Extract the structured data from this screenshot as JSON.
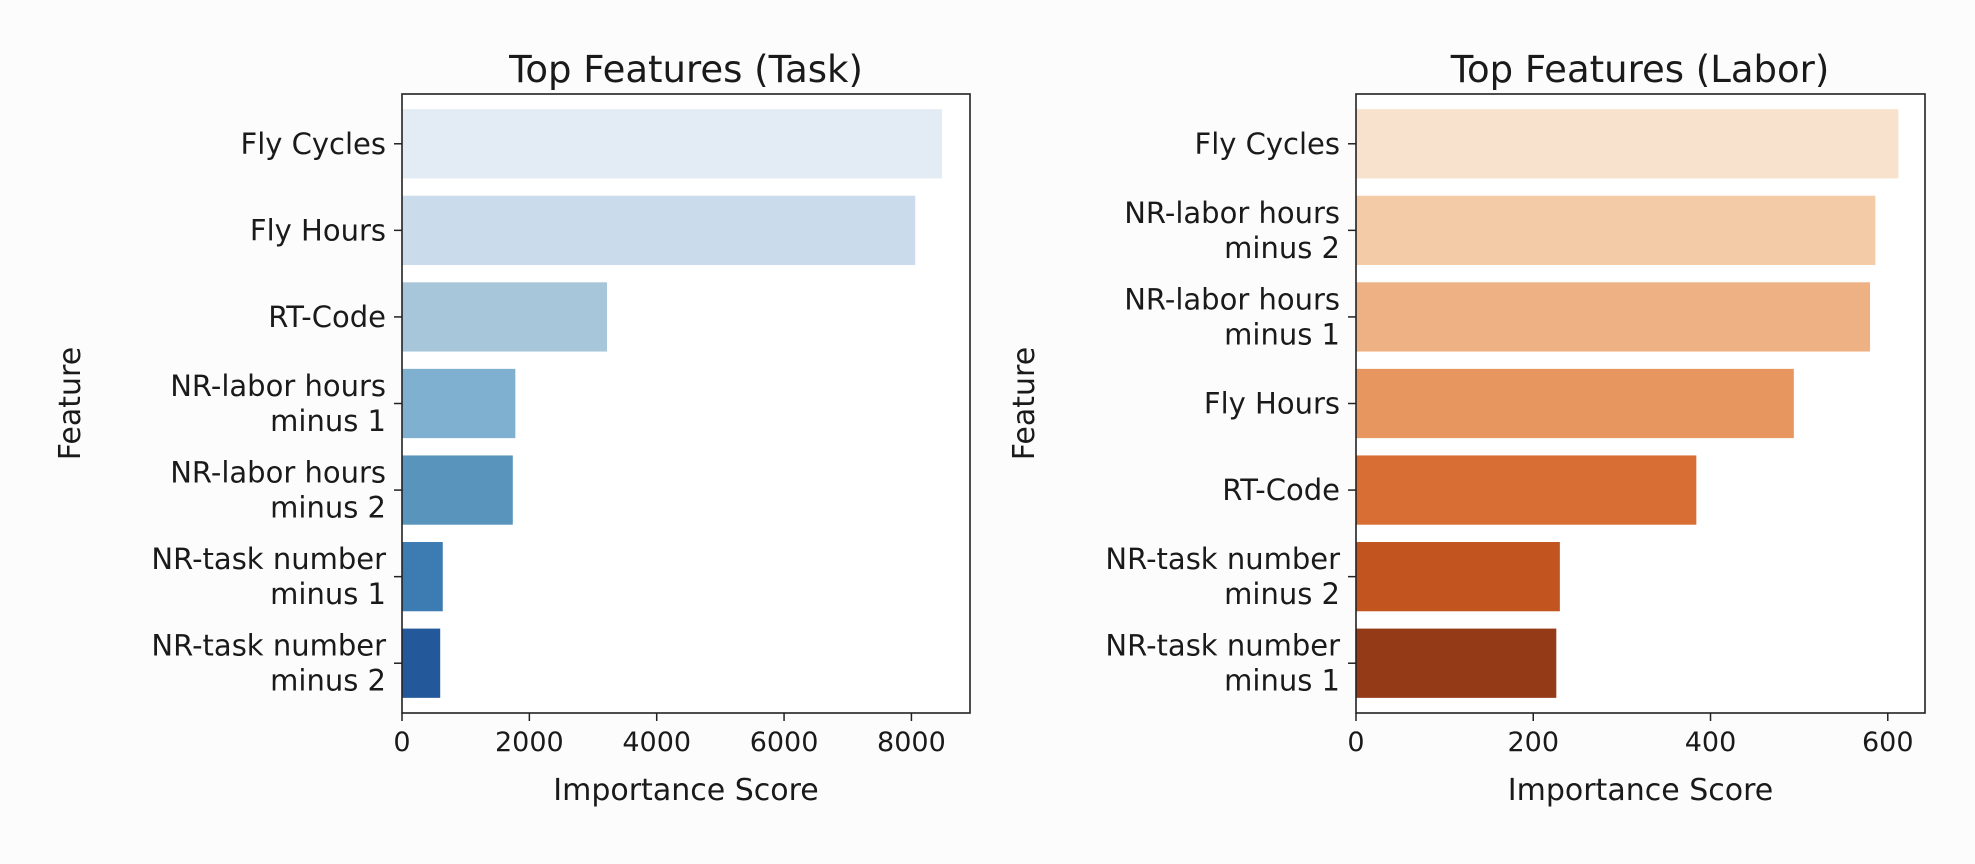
{
  "chart_data": [
    {
      "type": "bar",
      "orientation": "horizontal",
      "title": "Top Features (Task)",
      "xlabel": "Importance Score",
      "ylabel": "Feature",
      "categories": [
        [
          "Fly Cycles"
        ],
        [
          "Fly Hours"
        ],
        [
          "RT-Code"
        ],
        [
          "NR-labor hours",
          "minus 1"
        ],
        [
          "NR-labor hours",
          "minus 2"
        ],
        [
          "NR-task number",
          "minus 1"
        ],
        [
          "NR-task number",
          "minus 2"
        ]
      ],
      "values": [
        8480,
        8060,
        3220,
        1780,
        1740,
        640,
        600
      ],
      "xlim": [
        0,
        8920
      ],
      "xticks": [
        0,
        2000,
        4000,
        6000,
        8000
      ],
      "xtick_labels": [
        "0",
        "2000",
        "4000",
        "6000",
        "8000"
      ],
      "colors": [
        "#e3ebf5",
        "#cadbeb",
        "#a7c6da",
        "#7fb0d0",
        "#5994bd",
        "#3c7cb3",
        "#23599a"
      ],
      "grid": false,
      "legend": "none"
    },
    {
      "type": "bar",
      "orientation": "horizontal",
      "title": "Top Features (Labor)",
      "xlabel": "Importance Score",
      "ylabel": "Feature",
      "categories": [
        [
          "Fly Cycles"
        ],
        [
          "NR-labor hours",
          "minus 2"
        ],
        [
          "NR-labor hours",
          "minus 1"
        ],
        [
          "Fly Hours"
        ],
        [
          "RT-Code"
        ],
        [
          "NR-task number",
          "minus 2"
        ],
        [
          "NR-task number",
          "minus 1"
        ]
      ],
      "values": [
        612,
        586,
        580,
        494,
        384,
        230,
        226
      ],
      "xlim": [
        0,
        642
      ],
      "xticks": [
        0,
        200,
        400,
        600
      ],
      "xtick_labels": [
        "0",
        "200",
        "400",
        "600"
      ],
      "colors": [
        "#f9e2cd",
        "#f4cba7",
        "#eeb184",
        "#e6965e",
        "#d86e33",
        "#c1541f",
        "#953a16"
      ],
      "grid": false,
      "legend": "none"
    }
  ]
}
